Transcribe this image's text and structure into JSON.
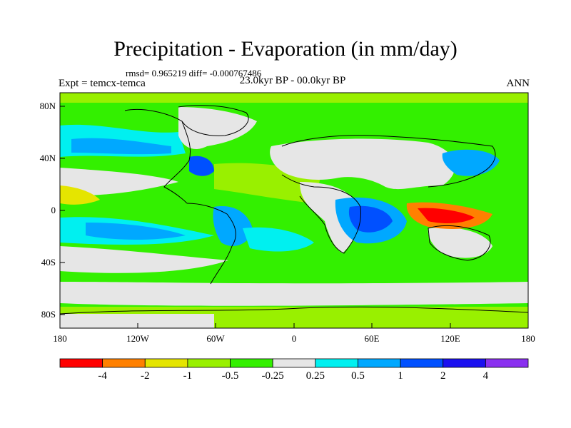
{
  "title": "Precipitation - Evaporation (in mm/day)",
  "stats": "rmsd= 0.965219 diff= -0.000767486",
  "left_subtitle": "Expt = temcx-temca",
  "center_subtitle": "23.0kyr BP - 00.0kyr BP",
  "right_subtitle": "ANN",
  "axes": {
    "x_ticks": [
      "180",
      "120W",
      "60W",
      "0",
      "60E",
      "120E",
      "180"
    ],
    "y_ticks": [
      "80N",
      "40N",
      "0",
      "40S",
      "80S"
    ]
  },
  "colorbar": {
    "colors": [
      "#ff0000",
      "#ff8000",
      "#e5e500",
      "#99f000",
      "#33f000",
      "#e6e6e6",
      "#00f0f0",
      "#00a8ff",
      "#0050ff",
      "#1a10f0",
      "#8a30f0"
    ],
    "labels": [
      "-4",
      "-2",
      "-1",
      "-0.5",
      "-0.25",
      "0.25",
      "0.5",
      "1",
      "2",
      "4"
    ]
  }
}
